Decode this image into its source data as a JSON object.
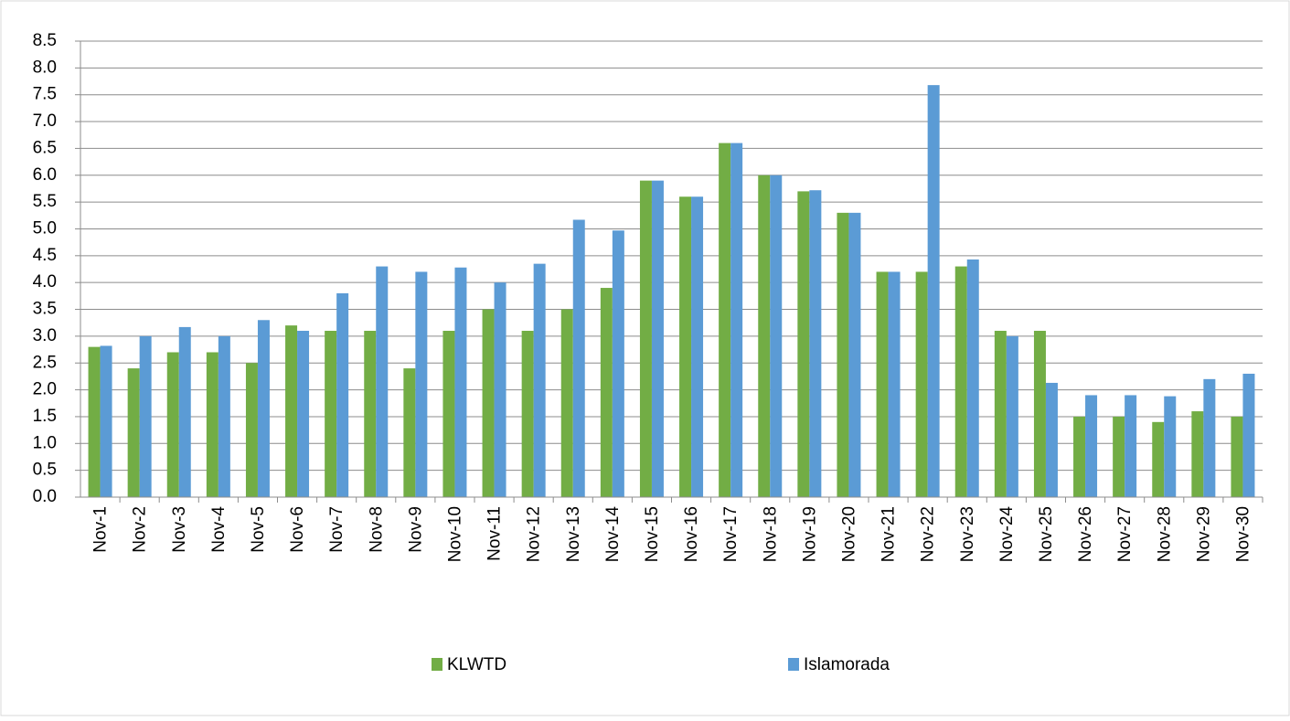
{
  "chart_data": {
    "type": "bar",
    "categories": [
      "Nov-1",
      "Nov-2",
      "Nov-3",
      "Nov-4",
      "Nov-5",
      "Nov-6",
      "Nov-7",
      "Nov-8",
      "Nov-9",
      "Nov-10",
      "Nov-11",
      "Nov-12",
      "Nov-13",
      "Nov-14",
      "Nov-15",
      "Nov-16",
      "Nov-17",
      "Nov-18",
      "Nov-19",
      "Nov-20",
      "Nov-21",
      "Nov-22",
      "Nov-23",
      "Nov-24",
      "Nov-25",
      "Nov-26",
      "Nov-27",
      "Nov-28",
      "Nov-29",
      "Nov-30"
    ],
    "series": [
      {
        "name": "KLWTD",
        "color": "#72ad45",
        "values": [
          2.8,
          2.4,
          2.7,
          2.7,
          2.5,
          3.2,
          3.1,
          3.1,
          2.4,
          3.1,
          3.5,
          3.1,
          3.5,
          3.9,
          5.9,
          5.6,
          6.6,
          6.0,
          5.7,
          5.3,
          4.2,
          4.2,
          4.3,
          3.1,
          3.1,
          1.5,
          1.5,
          1.4,
          1.6,
          1.5
        ]
      },
      {
        "name": "Islamorada",
        "color": "#5b9bd5",
        "values": [
          2.82,
          3.0,
          3.17,
          3.0,
          3.3,
          3.1,
          3.8,
          4.3,
          4.2,
          4.28,
          4.0,
          4.35,
          5.17,
          4.97,
          5.9,
          5.6,
          6.6,
          6.0,
          5.72,
          5.3,
          4.2,
          7.68,
          4.43,
          3.0,
          2.13,
          1.9,
          1.9,
          1.88,
          2.2,
          2.3
        ]
      }
    ],
    "ylim": [
      0,
      8.5
    ],
    "yticks": [
      {
        "value": 0,
        "label": "0.0"
      },
      0.5,
      {
        "value": 1,
        "label": "1.0"
      },
      1.5,
      {
        "value": 2,
        "label": "2.0"
      },
      2.5,
      {
        "value": 3,
        "label": "3.0"
      },
      3.5,
      {
        "value": 4,
        "label": "4.0"
      },
      4.5,
      {
        "value": 5,
        "label": "5.0"
      },
      5.5,
      {
        "value": 6,
        "label": "6.0"
      },
      6.5,
      {
        "value": 7,
        "label": "7.0"
      },
      7.5,
      {
        "value": 8,
        "label": "8.0"
      },
      8.5
    ],
    "grid": true,
    "legend": "bottom"
  }
}
